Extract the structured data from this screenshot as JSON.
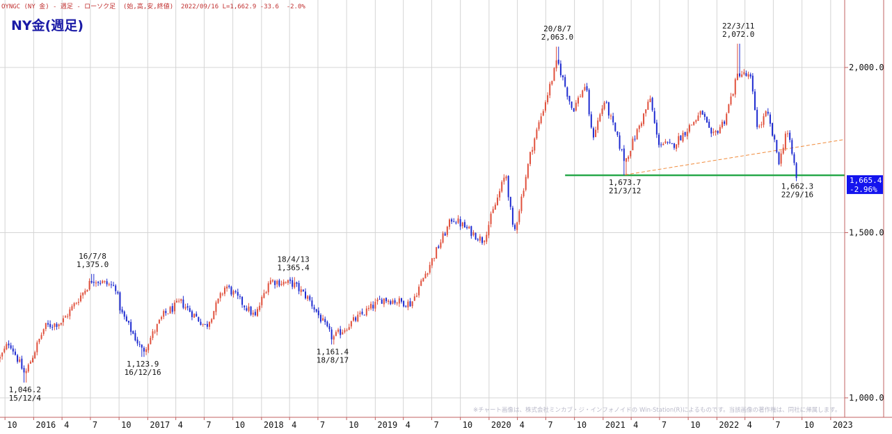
{
  "header": {
    "code": "OYNGC",
    "name": "(NY 金)",
    "sep1": "-",
    "interval": "週足",
    "sep2": "-",
    "chart_kind": "ローソク足",
    "fields": "(始,高,安,終値)",
    "date": "2022/09/16",
    "last": "L=1,662.9",
    "change": "-33.6",
    "change_pct": "-2.0%"
  },
  "title": "NY金(週足)",
  "credit": "※チャート画像は、株式会社ミンカブ・ジ・インフォノイドの Win-Station(R)によるものです。当該画像の著作権は、同社に帰属します。",
  "colors": {
    "up": "#e0503c",
    "down": "#1e2bd0",
    "support": "#27a84a",
    "trend": "#f08a3a",
    "axis": "#c06060",
    "grid": "#d4d4d4",
    "price_box": "#1414ee"
  },
  "chart_data": {
    "type": "candlestick",
    "interval": "weekly",
    "ylim": [
      1000,
      2000
    ],
    "y_ticks": [
      {
        "value": 1000,
        "label": "1,000.0"
      },
      {
        "value": 1500,
        "label": "1,500.0"
      },
      {
        "value": 2000,
        "label": "2,000.0"
      }
    ],
    "x_ticks": [
      {
        "date": "2015-10",
        "label": "10"
      },
      {
        "date": "2016-01",
        "label": "2016"
      },
      {
        "date": "2016-04",
        "label": "4"
      },
      {
        "date": "2016-07",
        "label": "7"
      },
      {
        "date": "2016-10",
        "label": "10"
      },
      {
        "date": "2017-01",
        "label": "2017"
      },
      {
        "date": "2017-04",
        "label": "4"
      },
      {
        "date": "2017-07",
        "label": "7"
      },
      {
        "date": "2017-10",
        "label": "10"
      },
      {
        "date": "2018-01",
        "label": "2018"
      },
      {
        "date": "2018-04",
        "label": "4"
      },
      {
        "date": "2018-07",
        "label": "7"
      },
      {
        "date": "2018-10",
        "label": "10"
      },
      {
        "date": "2019-01",
        "label": "2019"
      },
      {
        "date": "2019-04",
        "label": "4"
      },
      {
        "date": "2019-07",
        "label": "7"
      },
      {
        "date": "2019-10",
        "label": "10"
      },
      {
        "date": "2020-01",
        "label": "2020"
      },
      {
        "date": "2020-04",
        "label": "4"
      },
      {
        "date": "2020-07",
        "label": "7"
      },
      {
        "date": "2020-10",
        "label": "10"
      },
      {
        "date": "2021-01",
        "label": "2021"
      },
      {
        "date": "2021-04",
        "label": "4"
      },
      {
        "date": "2021-07",
        "label": "7"
      },
      {
        "date": "2021-10",
        "label": "10"
      },
      {
        "date": "2022-01",
        "label": "2022"
      },
      {
        "date": "2022-04",
        "label": "4"
      },
      {
        "date": "2022-07",
        "label": "7"
      },
      {
        "date": "2022-10",
        "label": "10"
      },
      {
        "date": "2023-01",
        "label": "2023"
      }
    ],
    "key_points": [
      {
        "date": "2015-09-15",
        "close": 1120
      },
      {
        "date": "2015-10-15",
        "close": 1170
      },
      {
        "date": "2015-12-04",
        "close": 1070
      },
      {
        "date": "2016-02-05",
        "close": 1215
      },
      {
        "date": "2016-04-01",
        "close": 1230
      },
      {
        "date": "2016-07-08",
        "close": 1360
      },
      {
        "date": "2016-09-20",
        "close": 1335
      },
      {
        "date": "2016-10-07",
        "close": 1260
      },
      {
        "date": "2016-12-16",
        "close": 1140
      },
      {
        "date": "2017-02-20",
        "close": 1250
      },
      {
        "date": "2017-04-17",
        "close": 1290
      },
      {
        "date": "2017-07-07",
        "close": 1215
      },
      {
        "date": "2017-09-08",
        "close": 1340
      },
      {
        "date": "2017-12-12",
        "close": 1245
      },
      {
        "date": "2018-01-25",
        "close": 1355
      },
      {
        "date": "2018-04-13",
        "close": 1345
      },
      {
        "date": "2018-06-01",
        "close": 1300
      },
      {
        "date": "2018-08-17",
        "close": 1180
      },
      {
        "date": "2018-10-26",
        "close": 1235
      },
      {
        "date": "2019-01-25",
        "close": 1300
      },
      {
        "date": "2019-04-26",
        "close": 1285
      },
      {
        "date": "2019-06-28",
        "close": 1410
      },
      {
        "date": "2019-09-05",
        "close": 1545
      },
      {
        "date": "2019-12-13",
        "close": 1475
      },
      {
        "date": "2020-02-24",
        "close": 1680
      },
      {
        "date": "2020-03-20",
        "close": 1490
      },
      {
        "date": "2020-05-15",
        "close": 1750
      },
      {
        "date": "2020-08-07",
        "close": 2020
      },
      {
        "date": "2020-09-25",
        "close": 1870
      },
      {
        "date": "2020-11-06",
        "close": 1950
      },
      {
        "date": "2020-11-27",
        "close": 1785
      },
      {
        "date": "2021-01-06",
        "close": 1900
      },
      {
        "date": "2021-03-12",
        "close": 1715
      },
      {
        "date": "2021-06-01",
        "close": 1905
      },
      {
        "date": "2021-06-25",
        "close": 1775
      },
      {
        "date": "2021-08-09",
        "close": 1760
      },
      {
        "date": "2021-11-15",
        "close": 1865
      },
      {
        "date": "2021-12-15",
        "close": 1785
      },
      {
        "date": "2022-01-25",
        "close": 1840
      },
      {
        "date": "2022-03-11",
        "close": 1985
      },
      {
        "date": "2022-04-18",
        "close": 1970
      },
      {
        "date": "2022-05-13",
        "close": 1810
      },
      {
        "date": "2022-06-10",
        "close": 1865
      },
      {
        "date": "2022-07-21",
        "close": 1710
      },
      {
        "date": "2022-08-12",
        "close": 1815
      },
      {
        "date": "2022-09-16",
        "close": 1665
      }
    ],
    "annotations": [
      {
        "text": [
          "1,046.2",
          "15/12/4"
        ],
        "date": "2015-12-04",
        "value": 1046.2,
        "position": "below"
      },
      {
        "text": [
          "16/7/8",
          "1,375.0"
        ],
        "date": "2016-07-08",
        "value": 1375.0,
        "position": "above"
      },
      {
        "text": [
          "1,123.9",
          "16/12/16"
        ],
        "date": "2016-12-16",
        "value": 1123.9,
        "position": "below"
      },
      {
        "text": [
          "18/4/13",
          "1,365.4"
        ],
        "date": "2018-04-13",
        "value": 1365.4,
        "position": "above"
      },
      {
        "text": [
          "1,161.4",
          "18/8/17"
        ],
        "date": "2018-08-17",
        "value": 1161.4,
        "position": "below"
      },
      {
        "text": [
          "20/8/7",
          "2,063.0"
        ],
        "date": "2020-08-07",
        "value": 2063.0,
        "position": "above"
      },
      {
        "text": [
          "1,673.7",
          "21/3/12"
        ],
        "date": "2021-03-12",
        "value": 1673.7,
        "position": "below"
      },
      {
        "text": [
          "22/3/11",
          "2,072.0"
        ],
        "date": "2022-03-11",
        "value": 2072.0,
        "position": "above"
      },
      {
        "text": [
          "1,662.3",
          "22/9/16"
        ],
        "date": "2022-09-16",
        "value": 1662.3,
        "position": "below"
      }
    ],
    "support_line": {
      "value": 1673.7,
      "from": "2020-09-01",
      "to": "2023-02-15"
    },
    "trend_line": {
      "from": {
        "date": "2021-03-12",
        "value": 1675
      },
      "to": {
        "date": "2023-02-15",
        "value": 1782
      }
    },
    "current_price": {
      "value": 1665.4,
      "label": "1,665.4",
      "change_label": "-2.96%"
    },
    "grid": true,
    "legend": "none"
  }
}
